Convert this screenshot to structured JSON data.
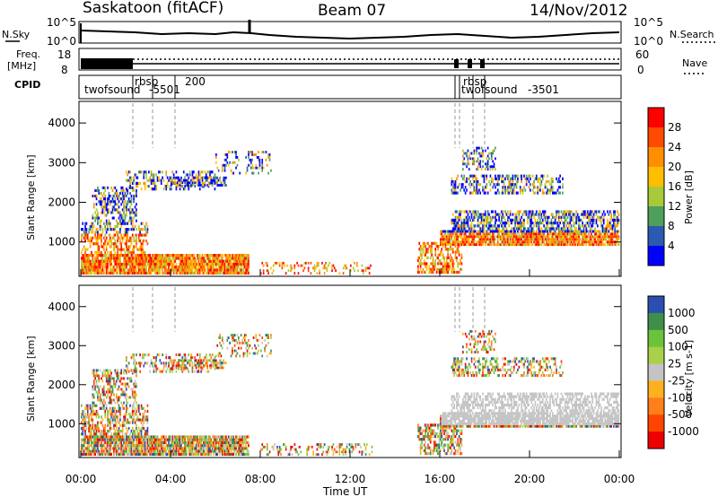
{
  "header": {
    "station": "Saskatoon (fitACF)",
    "beam": "Beam 07",
    "date": "14/Nov/2012"
  },
  "top_panels": {
    "nsky_label": "N.Sky",
    "nsky_ticks": [
      "10^5",
      "10^0"
    ],
    "nsearch_label": "N.Search",
    "nsearch_ticks": [
      "10^5",
      "10^0"
    ],
    "freq_label_1": "Freq.",
    "freq_label_2": "[MHz]",
    "freq_ticks": [
      "18",
      "8"
    ],
    "nave_label": "Nave",
    "nave_ticks": [
      "60",
      "0"
    ],
    "cpid_label": "CPID",
    "cpid_names": [
      "twofsound",
      "rbsp",
      "-5501",
      "200",
      "rbsp",
      "twofsound",
      "-3501"
    ]
  },
  "colors": {
    "background": "#ffffff",
    "ground_scatter": "#bdbdbd",
    "frame": "#000000"
  },
  "chart_data": [
    {
      "type": "heatmap",
      "title": "",
      "xlabel": "",
      "ylabel": "Slant Range [km]",
      "xlim": [
        0,
        24
      ],
      "ylim": [
        180,
        4500
      ],
      "x_ticks": [
        "00:00",
        "04:00",
        "08:00",
        "12:00",
        "16:00",
        "20:00",
        "00:00"
      ],
      "y_ticks": [
        "1000",
        "2000",
        "3000",
        "4000"
      ],
      "colorbar": {
        "label": "Power [dB]",
        "levels": [
          "28",
          "24",
          "20",
          "16",
          "12",
          "8",
          "4"
        ],
        "colors": [
          "#ff0000",
          "#ff4a00",
          "#ff8f00",
          "#ffbe00",
          "#a9c83a",
          "#4e9e5c",
          "#2b5bb0",
          "#0000ff"
        ]
      }
    },
    {
      "type": "heatmap",
      "title": "",
      "xlabel": "Time UT",
      "ylabel": "Slant Range [km]",
      "xlim": [
        0,
        24
      ],
      "ylim": [
        180,
        4500
      ],
      "x_ticks": [
        "00:00",
        "04:00",
        "08:00",
        "12:00",
        "16:00",
        "20:00",
        "00:00"
      ],
      "y_ticks": [
        "1000",
        "2000",
        "3000",
        "4000"
      ],
      "colorbar": {
        "label": "Velocity [m s-1]",
        "levels": [
          "1000",
          "500",
          "100",
          "25",
          "-25",
          "-100",
          "-500",
          "-1000"
        ],
        "colors": [
          "#2b4fb0",
          "#3e8f4c",
          "#6cc33a",
          "#a9d04a",
          "#c4c4c4",
          "#ffb020",
          "#ff7f1a",
          "#ff4400",
          "#ee0000"
        ]
      }
    }
  ]
}
